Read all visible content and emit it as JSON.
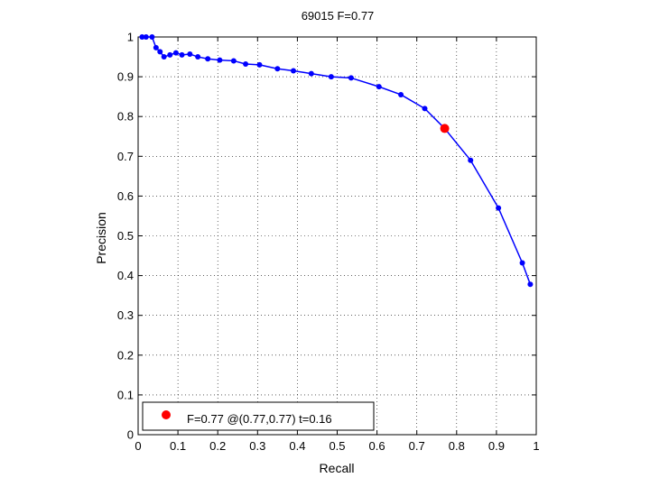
{
  "chart_data": {
    "type": "line",
    "title": "69015 F=0.77",
    "xlabel": "Recall",
    "ylabel": "Precision",
    "xlim": [
      0,
      1
    ],
    "ylim": [
      0,
      1
    ],
    "grid": true,
    "x_ticks": [
      "0",
      "0.1",
      "0.2",
      "0.3",
      "0.4",
      "0.5",
      "0.6",
      "0.7",
      "0.8",
      "0.9",
      "1"
    ],
    "y_ticks": [
      "0",
      "0.1",
      "0.2",
      "0.3",
      "0.4",
      "0.5",
      "0.6",
      "0.7",
      "0.8",
      "0.9",
      "1"
    ],
    "series": [
      {
        "color": "#0000ff",
        "x": [
          0.01,
          0.02,
          0.035,
          0.045,
          0.055,
          0.065,
          0.08,
          0.095,
          0.11,
          0.13,
          0.15,
          0.175,
          0.205,
          0.24,
          0.27,
          0.305,
          0.35,
          0.39,
          0.435,
          0.485,
          0.535,
          0.605,
          0.66,
          0.72,
          0.77,
          0.835,
          0.905,
          0.965,
          0.985
        ],
        "y": [
          1.0,
          1.0,
          1.0,
          0.973,
          0.963,
          0.95,
          0.955,
          0.96,
          0.955,
          0.957,
          0.95,
          0.945,
          0.942,
          0.94,
          0.932,
          0.93,
          0.92,
          0.915,
          0.908,
          0.9,
          0.897,
          0.875,
          0.855,
          0.82,
          0.77,
          0.69,
          0.57,
          0.432,
          0.378
        ]
      }
    ],
    "highlight": {
      "x": 0.77,
      "y": 0.77,
      "color": "#ff0000"
    },
    "legend": {
      "position": "bottom-left",
      "text": "F=0.77 @(0.77,0.77) t=0.16"
    }
  }
}
